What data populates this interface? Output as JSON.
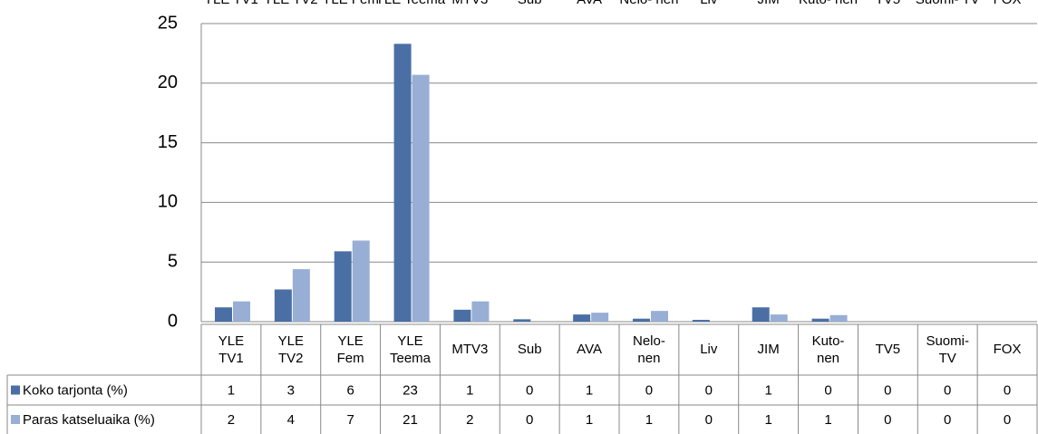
{
  "chart_data": {
    "type": "bar",
    "categories": [
      "YLE\nTV1",
      "YLE\nTV2",
      "YLE\nFem",
      "YLE\nTeema",
      "MTV3",
      "Sub",
      "AVA",
      "Nelo-\nnen",
      "Liv",
      "JIM",
      "Kuto-\nnen",
      "TV5",
      "Suomi-\nTV",
      "FOX"
    ],
    "series": [
      {
        "name": "Koko tarjonta (%)",
        "color": "#4a6fa5",
        "values": [
          1.2,
          2.7,
          5.9,
          23.3,
          1.0,
          0.2,
          0.6,
          0.25,
          0.15,
          1.2,
          0.25,
          0,
          0,
          0
        ],
        "value_labels": [
          "1",
          "3",
          "6",
          "23",
          "1",
          "0",
          "1",
          "0",
          "0",
          "1",
          "0",
          "0",
          "0",
          "0"
        ]
      },
      {
        "name": "Paras katseluaika (%)",
        "color": "#98aed5",
        "values": [
          1.7,
          4.4,
          6.8,
          20.7,
          1.7,
          0,
          0.75,
          0.9,
          0,
          0.6,
          0.55,
          0,
          0,
          0
        ],
        "value_labels": [
          "2",
          "4",
          "7",
          "21",
          "2",
          "0",
          "1",
          "1",
          "0",
          "1",
          "1",
          "0",
          "0",
          "0"
        ]
      }
    ],
    "ylim": [
      0,
      25
    ],
    "yticks": [
      0,
      5,
      10,
      15,
      20,
      25
    ],
    "grid": true
  }
}
